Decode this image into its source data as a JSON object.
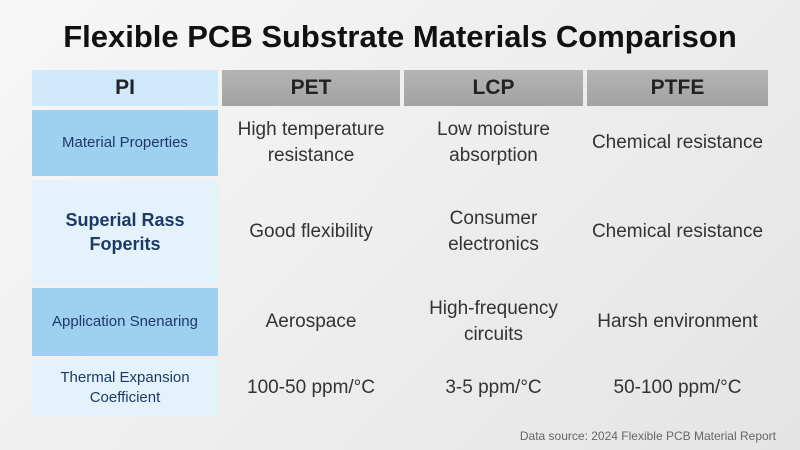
{
  "title": "Flexible PCB Substrate Materials Comparison",
  "table": {
    "header": [
      "PI",
      "PET",
      "LCP",
      "PTFE"
    ],
    "rows": [
      [
        "Material Properties",
        "High temperature resistance",
        "Low moisture absorption",
        "Chemical resistance"
      ],
      [
        "Superial Rass Foperits",
        "Good flexibility",
        "Consumer electronics",
        "Chemical resistance"
      ],
      [
        "Application Snenaring",
        "Aerospace",
        "High-frequency circuits",
        "Harsh environment"
      ],
      [
        "Thermal Expansion Coefficient",
        "100-50 ppm/°C",
        "3-5 ppm/°C",
        "50-100 ppm/°C"
      ]
    ]
  },
  "footer": {
    "source": "Data source: 2024 Flexible PCB Material Report"
  }
}
